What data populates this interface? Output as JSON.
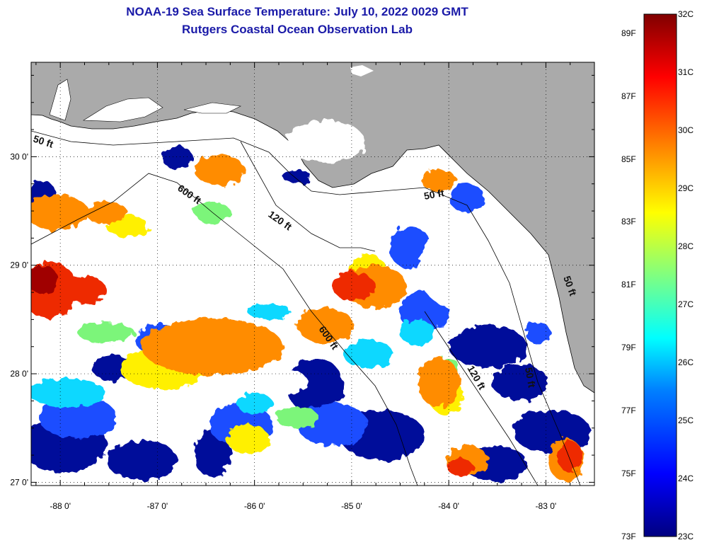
{
  "title": "NOAA-19 Sea Surface Temperature:  July 10, 2022 0029 GMT",
  "subtitle": "Rutgers Coastal Ocean Observation Lab",
  "map": {
    "lon_range": [
      -88.3,
      -82.5
    ],
    "lat_range": [
      26.97,
      30.87
    ],
    "lon_ticks": [
      {
        "value": -88,
        "label": "-88 0'"
      },
      {
        "value": -87,
        "label": "-87 0'"
      },
      {
        "value": -86,
        "label": "-86 0'"
      },
      {
        "value": -85,
        "label": "-85 0'"
      },
      {
        "value": -84,
        "label": "-84 0'"
      },
      {
        "value": -83,
        "label": "-83 0'"
      }
    ],
    "lat_ticks": [
      {
        "value": 30,
        "label": "30 0'"
      },
      {
        "value": 29,
        "label": "29 0'"
      },
      {
        "value": 28,
        "label": "28 0'"
      },
      {
        "value": 27,
        "label": "27 0'"
      }
    ],
    "contour_labels": {
      "c50_west": "50 ft",
      "c600": "600 ft",
      "c120_north": "120 ft",
      "c50_bigbend": "50 ft",
      "c50_ceb": "50 ft",
      "c600_south": "600 ft",
      "c120_south": "120 ft",
      "c50_south": "50 ft"
    }
  },
  "colorbar": {
    "fahrenheit": [
      "89F",
      "87F",
      "85F",
      "83F",
      "81F",
      "79F",
      "77F",
      "75F",
      "73F"
    ],
    "celsius": [
      "32C",
      "31C",
      "30C",
      "29C",
      "28C",
      "27C",
      "26C",
      "25C",
      "24C",
      "23C"
    ],
    "colors": [
      "#000080",
      "#0000ff",
      "#0080ff",
      "#00ffff",
      "#80ff80",
      "#ffff00",
      "#ff8000",
      "#ff0000",
      "#800000"
    ]
  }
}
